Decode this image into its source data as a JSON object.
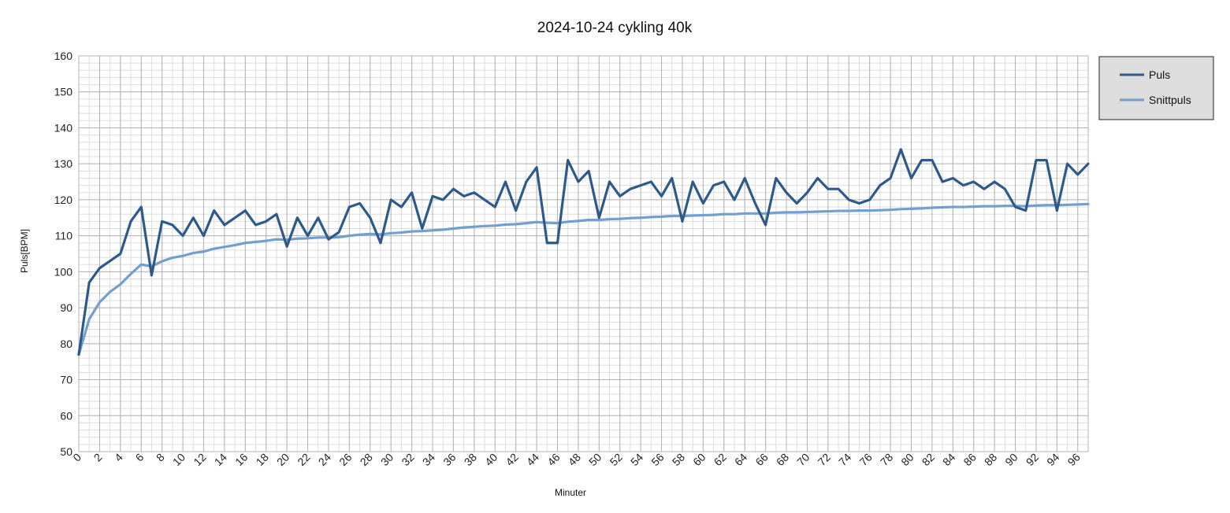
{
  "chart_data": {
    "type": "line",
    "title": "2024-10-24 cykling 40k",
    "xlabel": "Minuter",
    "ylabel": "Puls[BPM]",
    "xlim": [
      0,
      97
    ],
    "ylim": [
      50,
      160
    ],
    "ytick_step": 10,
    "xtick_step": 2,
    "x_tick_labels": [
      "0",
      "2",
      "4",
      "6",
      "8",
      "10",
      "12",
      "14",
      "16",
      "18",
      "20",
      "22",
      "24",
      "26",
      "28",
      "30",
      "32",
      "34",
      "36",
      "38",
      "40",
      "42",
      "44",
      "46",
      "48",
      "50",
      "52",
      "54",
      "56",
      "58",
      "60",
      "62",
      "64",
      "66",
      "68",
      "70",
      "72",
      "74",
      "76",
      "78",
      "80",
      "82",
      "84",
      "86",
      "88",
      "90",
      "92",
      "94",
      "96"
    ],
    "y_tick_labels": [
      "50",
      "60",
      "70",
      "80",
      "90",
      "100",
      "110",
      "120",
      "130",
      "140",
      "150",
      "160"
    ],
    "grid": true,
    "legend_position": "right",
    "series": [
      {
        "name": "Puls",
        "color": "#2e5a8a",
        "values": [
          77,
          97,
          101,
          103,
          105,
          114,
          118,
          99,
          114,
          113,
          110,
          115,
          110,
          117,
          113,
          115,
          117,
          113,
          114,
          116,
          107,
          115,
          110,
          115,
          109,
          111,
          118,
          119,
          115,
          108,
          120,
          118,
          122,
          112,
          121,
          120,
          123,
          121,
          122,
          120,
          118,
          125,
          117,
          125,
          129,
          108,
          108,
          131,
          125,
          128,
          115,
          125,
          121,
          123,
          124,
          125,
          121,
          126,
          114,
          125,
          119,
          124,
          125,
          120,
          126,
          119,
          113,
          126,
          122,
          119,
          122,
          126,
          123,
          123,
          120,
          119,
          120,
          124,
          126,
          134,
          126,
          131,
          131,
          125,
          126,
          124,
          125,
          123,
          125,
          123,
          118,
          117,
          131,
          131,
          117,
          130,
          127,
          130
        ]
      },
      {
        "name": "Snittpuls",
        "color": "#729fcf",
        "values": [
          77,
          86.8,
          91.5,
          94.4,
          96.5,
          99.4,
          102,
          101.5,
          102.9,
          103.9,
          104.4,
          105.2,
          105.6,
          106.4,
          106.9,
          107.4,
          108,
          108.3,
          108.6,
          109,
          108.9,
          109.2,
          109.3,
          109.5,
          109.5,
          109.6,
          110,
          110.3,
          110.5,
          110.4,
          110.7,
          110.9,
          111.2,
          111.3,
          111.5,
          111.7,
          112,
          112.3,
          112.5,
          112.7,
          112.8,
          113.1,
          113.2,
          113.5,
          113.8,
          113.6,
          113.5,
          113.9,
          114.1,
          114.4,
          114.4,
          114.6,
          114.7,
          114.9,
          115,
          115.2,
          115.3,
          115.5,
          115.5,
          115.6,
          115.7,
          115.8,
          116,
          116,
          116.2,
          116.2,
          116.2,
          116.4,
          116.5,
          116.5,
          116.6,
          116.7,
          116.8,
          116.9,
          116.9,
          117,
          117,
          117.1,
          117.2,
          117.4,
          117.5,
          117.6,
          117.8,
          117.9,
          118,
          118,
          118.1,
          118.2,
          118.2,
          118.3,
          118.3,
          118.2,
          118.4,
          118.5,
          118.5,
          118.6,
          118.7,
          118.8
        ]
      }
    ]
  }
}
